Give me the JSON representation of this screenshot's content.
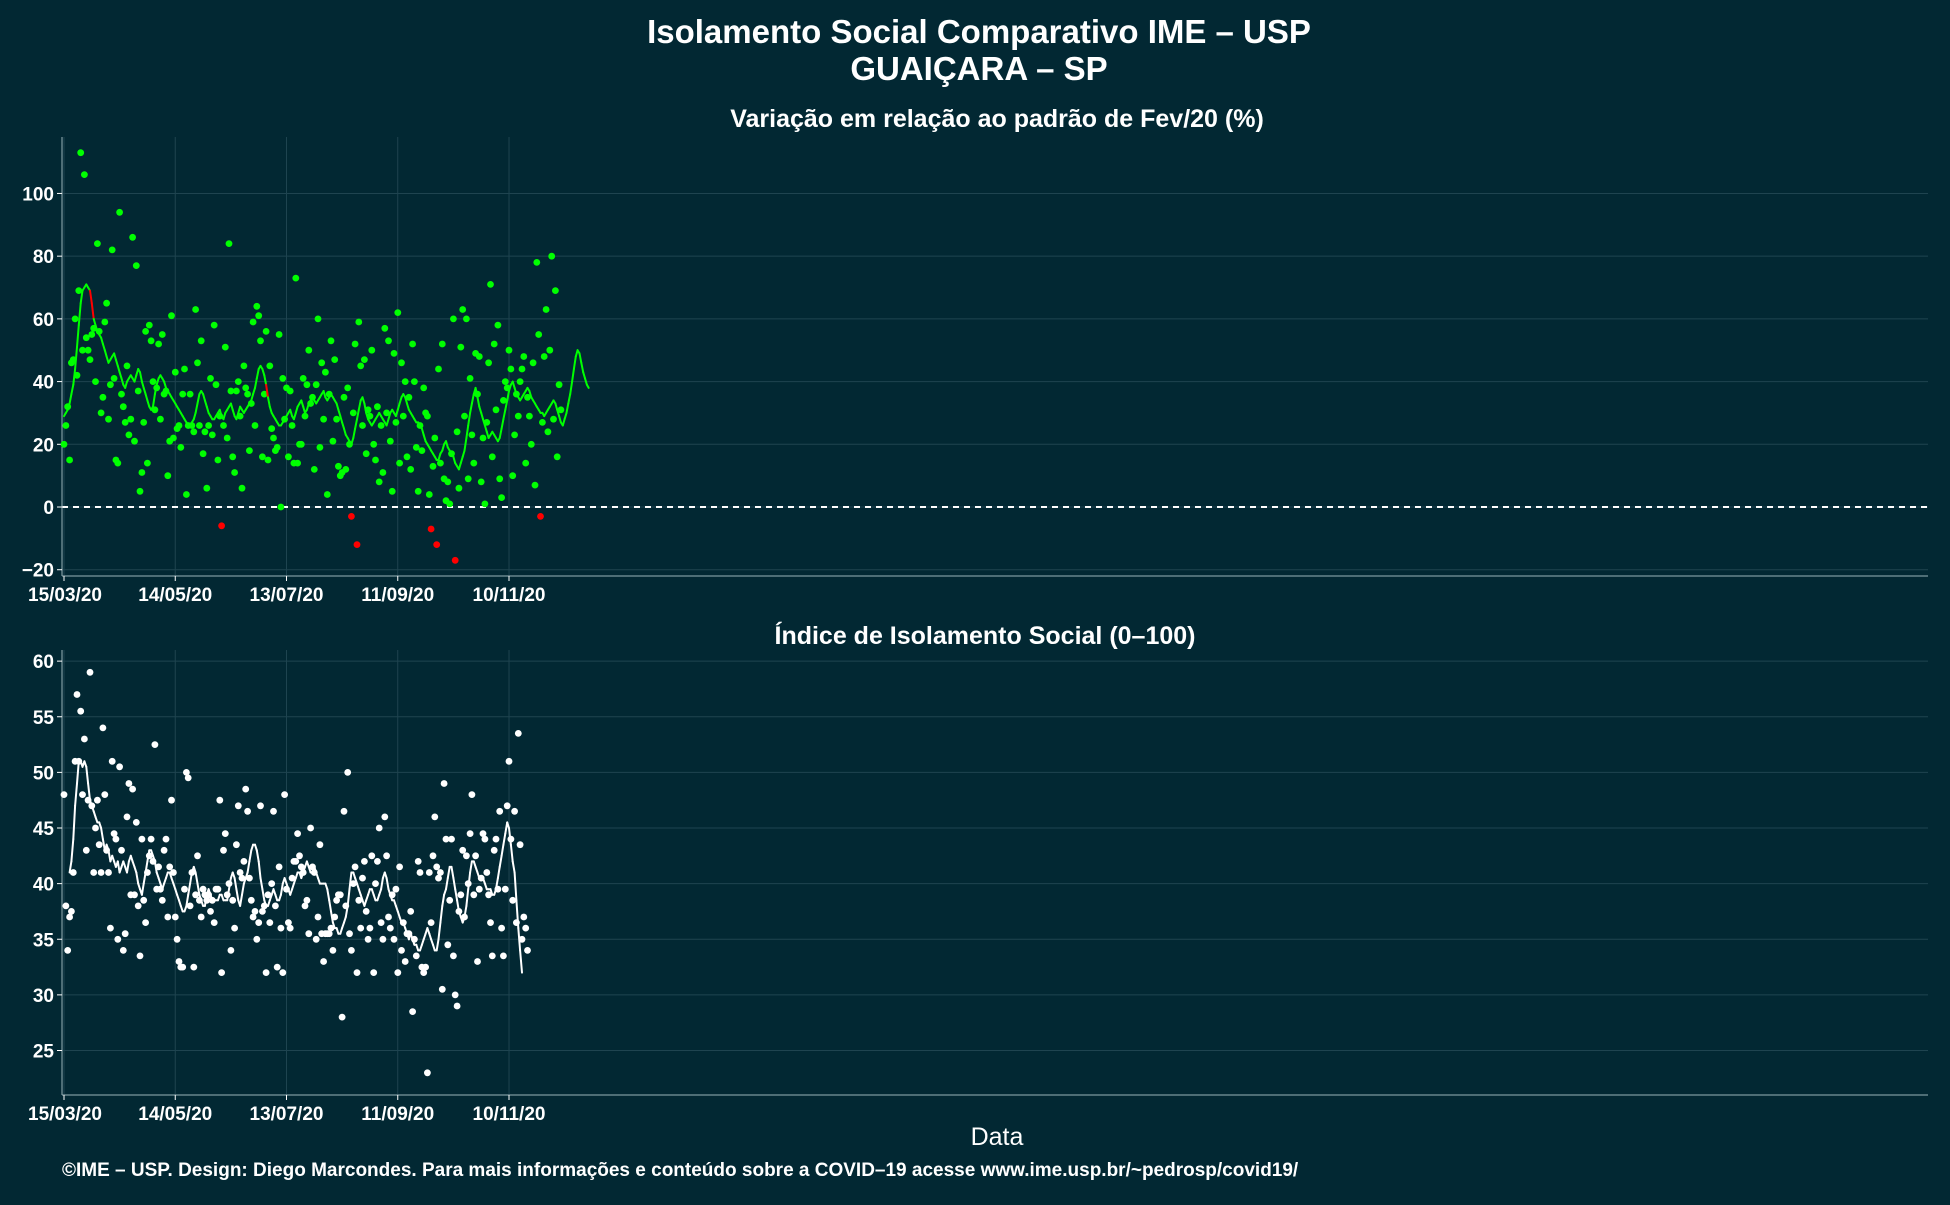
{
  "colors": {
    "background": "#022833",
    "panel": "#022833",
    "grid": "#1f4450",
    "axis_text": "#ffffff",
    "variation_points_positive": "#00ff00",
    "variation_points_negative": "#ff0000",
    "variation_line": "#00ff00",
    "index_points": "#ffffff",
    "index_line": "#ffffff",
    "zero_line": "#ffffff"
  },
  "title_line1": "Isolamento Social Comparativo IME – USP",
  "title_line2": "GUAIÇARA – SP",
  "x_axis_label": "Data",
  "footer": "©IME – USP. Design: Diego Marcondes. Para mais informações e conteúdo sobre a COVID–19 acesse www.ime.usp.br/~pedrosp/covid19/",
  "chart_data": [
    {
      "type": "scatter",
      "title": "Variação em relação ao padrão de Fev/20 (%)",
      "x_start_date": "15/03/20",
      "x_ticks": [
        "15/03/20",
        "14/05/20",
        "13/07/20",
        "11/09/20",
        "10/11/20"
      ],
      "ylim": [
        -22,
        118
      ],
      "y_ticks": [
        -20,
        0,
        20,
        40,
        60,
        80,
        100
      ],
      "y_tick_labels": [
        "−20",
        "0",
        "20",
        "40",
        "60",
        "80",
        "100"
      ],
      "reference_line": 0,
      "grid": true,
      "series": [
        {
          "kind": "points",
          "values": [
            20,
            26,
            32,
            15,
            46,
            47,
            60,
            42,
            69,
            113,
            50,
            106,
            54,
            50,
            47,
            55,
            57,
            40,
            84,
            56,
            30,
            35,
            59,
            65,
            28,
            39,
            82,
            41,
            15,
            14,
            94,
            36,
            32,
            27,
            45,
            23,
            28,
            86,
            21,
            77,
            37,
            5,
            11,
            27,
            56,
            14,
            58,
            53,
            40,
            31,
            38,
            52,
            28,
            55,
            36,
            37,
            10,
            21,
            61,
            22,
            43,
            25,
            26,
            19,
            36,
            44,
            4,
            26,
            36,
            26,
            24,
            63,
            46,
            26,
            53,
            17,
            24,
            6,
            26,
            41,
            23,
            58,
            39,
            15,
            29,
            -6,
            26,
            51,
            22,
            84,
            37,
            16,
            11,
            37,
            40,
            29,
            6,
            45,
            38,
            36,
            18,
            33,
            59,
            26,
            64,
            61,
            53,
            16,
            36,
            56,
            15,
            45,
            25,
            22,
            18,
            19,
            55,
            0,
            41,
            28,
            38,
            16,
            37,
            26,
            14,
            73,
            14,
            20,
            20,
            41,
            29,
            39,
            50,
            33,
            35,
            12,
            39,
            60,
            19,
            46,
            28,
            43,
            4,
            36,
            53,
            21,
            47,
            28,
            13,
            10,
            11,
            35,
            12,
            38,
            20,
            -3,
            30,
            52,
            -12,
            59,
            45,
            26,
            47,
            17,
            31,
            29,
            50,
            20,
            15,
            32,
            8,
            26,
            11,
            57,
            30,
            53,
            21,
            5,
            49,
            27,
            62,
            14,
            46,
            29,
            40,
            16,
            35,
            12,
            52,
            40,
            19,
            5,
            26,
            18,
            38,
            30,
            29,
            4,
            -7,
            13,
            22,
            -12,
            44,
            14,
            52,
            9,
            2,
            8,
            1,
            17,
            60,
            -17,
            24,
            6,
            51,
            63,
            29,
            60,
            9,
            41,
            23,
            14,
            49,
            36,
            48,
            8,
            22,
            1,
            27,
            46,
            71,
            16,
            52,
            31,
            58,
            9,
            3,
            34,
            40,
            38,
            50,
            44,
            10,
            23,
            36,
            29,
            40,
            44,
            48,
            14,
            35,
            29,
            20,
            46,
            7,
            78,
            55,
            -3,
            27,
            48,
            63,
            24,
            50,
            80,
            28,
            69,
            16,
            39,
            31
          ],
          "negative_color": "#ff0000",
          "positive_color": "#00ff00"
        },
        {
          "kind": "line",
          "start_index": 0,
          "values": [
            29,
            30,
            31,
            33,
            36,
            39,
            44,
            51,
            58,
            65,
            69,
            70,
            71,
            70,
            69,
            65,
            60,
            58,
            56,
            55,
            54,
            52,
            50,
            48,
            46,
            47,
            48,
            49,
            47,
            45,
            43,
            41,
            39,
            38,
            40,
            41,
            42,
            41,
            40,
            42,
            44,
            43,
            40,
            38,
            36,
            34,
            32,
            31,
            32,
            36,
            39,
            41,
            42,
            41,
            40,
            38,
            37,
            36,
            35,
            34,
            33,
            32,
            31,
            30,
            29,
            28,
            27,
            26,
            26,
            27,
            28,
            30,
            33,
            36,
            37,
            36,
            34,
            32,
            30,
            29,
            28,
            28,
            29,
            30,
            31,
            29,
            28,
            30,
            31,
            32,
            33,
            31,
            29,
            28,
            30,
            32,
            31,
            30,
            31,
            32,
            33,
            34,
            36,
            38,
            41,
            44,
            45,
            44,
            42,
            39,
            35,
            32,
            30,
            29,
            28,
            27,
            26,
            26,
            27,
            28,
            29,
            30,
            31,
            29,
            28,
            30,
            32,
            33,
            34,
            32,
            30,
            31,
            33,
            34,
            35,
            34,
            33,
            34,
            35,
            36,
            37,
            35,
            34,
            35,
            36,
            35,
            34,
            33,
            31,
            29,
            27,
            25,
            23,
            22,
            21,
            20,
            22,
            25,
            28,
            31,
            34,
            35,
            33,
            30,
            28,
            27,
            26,
            27,
            28,
            29,
            30,
            29,
            28,
            27,
            26,
            28,
            30,
            31,
            30,
            29,
            31,
            33,
            35,
            36,
            35,
            33,
            31,
            30,
            29,
            28,
            27,
            27,
            26,
            25,
            23,
            21,
            20,
            19,
            18,
            17,
            16,
            15,
            15,
            17,
            18,
            20,
            21,
            19,
            18,
            17,
            16,
            14,
            13,
            12,
            14,
            16,
            18,
            22,
            26,
            30,
            33,
            36,
            38,
            35,
            32,
            30,
            28,
            26,
            24,
            22,
            23,
            24,
            23,
            22,
            21,
            22,
            25,
            28,
            31,
            34,
            37,
            39,
            40,
            38,
            36,
            35,
            34,
            35,
            36,
            37,
            38,
            37,
            35,
            34,
            33,
            32,
            31,
            30,
            30,
            29,
            30,
            31,
            32,
            33,
            34,
            33,
            31,
            29,
            27,
            26,
            28,
            30,
            33,
            36,
            40,
            44,
            48,
            50,
            49,
            46,
            43,
            41,
            39,
            38
          ],
          "dip_color": "#ff0000"
        }
      ]
    },
    {
      "type": "scatter",
      "title": "Índice de Isolamento Social (0–100)",
      "x_start_date": "15/03/20",
      "x_ticks": [
        "15/03/20",
        "14/05/20",
        "13/07/20",
        "11/09/20",
        "10/11/20"
      ],
      "ylim": [
        21,
        61
      ],
      "y_ticks": [
        25,
        30,
        35,
        40,
        45,
        50,
        55,
        60
      ],
      "y_tick_labels": [
        "25",
        "30",
        "35",
        "40",
        "45",
        "50",
        "55",
        "60"
      ],
      "grid": true,
      "series": [
        {
          "kind": "points",
          "values": [
            48,
            38,
            34,
            37,
            37.5,
            41,
            51,
            57,
            51,
            55.5,
            48,
            53,
            43,
            47.5,
            59,
            47,
            41,
            45,
            47.5,
            43.5,
            41,
            54,
            48,
            43,
            41,
            36,
            51,
            44.5,
            44,
            35,
            50.5,
            43,
            34,
            35.5,
            46,
            49,
            39,
            48.5,
            39,
            45.5,
            38,
            33.5,
            44,
            38.5,
            36.5,
            41,
            42.5,
            44,
            42,
            52.5,
            39.5,
            41.5,
            39.5,
            38.5,
            43,
            44,
            37,
            41.5,
            47.5,
            41,
            37,
            35,
            33,
            32.5,
            32.5,
            39.5,
            50,
            49.5,
            38,
            41,
            32.5,
            39,
            42.5,
            38.5,
            37,
            39.5,
            39,
            38.5,
            39,
            37.5,
            38.5,
            36.5,
            39.5,
            39.5,
            47.5,
            32,
            43,
            44.5,
            39,
            40,
            34,
            38.5,
            36,
            43.5,
            47,
            41,
            40.5,
            42,
            48.5,
            46.5,
            40.5,
            38.5,
            37,
            37.5,
            35,
            36.5,
            47,
            37.5,
            38,
            32,
            39,
            36.5,
            40,
            46.5,
            38,
            32.5,
            41.5,
            36,
            32,
            48,
            39.5,
            36.5,
            36,
            40.5,
            42,
            42,
            44.5,
            42.5,
            41.5,
            41,
            38,
            38.5,
            35.5,
            45,
            41.5,
            41,
            35,
            37,
            43.5,
            35.5,
            33,
            35.5,
            35.5,
            35.5,
            36,
            34,
            37,
            38.5,
            39,
            39,
            28,
            46.5,
            38,
            50,
            35.5,
            34,
            40,
            41.5,
            32,
            38.5,
            36,
            40.5,
            42,
            37.5,
            35,
            36,
            42.5,
            32,
            40,
            42,
            45,
            36.5,
            35,
            46,
            42.5,
            37,
            36,
            39,
            35,
            39.5,
            32,
            41.5,
            34,
            36.5,
            33,
            35.5,
            35.5,
            37.5,
            28.5,
            35,
            33.5,
            42,
            41,
            32.5,
            32,
            32.5,
            23,
            41,
            36.5,
            42.5,
            46,
            41.5,
            40.5,
            41,
            30.5,
            49,
            44,
            34.5,
            38.5,
            44,
            33.5,
            30,
            29,
            37.5,
            39,
            43,
            37,
            42.5,
            40,
            44.5,
            48,
            39,
            42.5,
            33,
            39.5,
            40.5,
            44.5,
            44,
            41,
            39,
            36.5,
            33.5,
            43,
            44,
            39.5,
            46.5,
            36,
            33.5,
            39.5,
            47,
            51,
            44,
            38.5,
            46.5,
            36.5,
            53.5,
            43.5,
            35,
            37,
            36,
            34
          ],
          "color": "#ffffff"
        },
        {
          "kind": "line",
          "start_index": 3,
          "values": [
            41,
            42,
            44,
            47,
            49,
            51,
            51,
            50.5,
            51,
            50.5,
            49,
            47.5,
            47,
            46.5,
            46,
            45.5,
            45.5,
            45,
            44,
            43,
            43.5,
            43,
            42,
            42.5,
            42,
            41.5,
            42,
            41,
            41.5,
            42,
            41.5,
            41,
            42,
            42.5,
            42,
            41.5,
            41,
            40,
            39.5,
            39,
            40,
            41,
            42,
            43,
            43,
            42.5,
            42,
            41,
            40.5,
            40,
            39.5,
            40,
            40.5,
            41,
            41,
            40.5,
            40,
            39.5,
            39,
            38.5,
            38,
            37.5,
            37.5,
            38,
            39,
            40,
            41,
            41.5,
            41,
            40,
            39,
            38.5,
            38,
            38,
            39,
            39.5,
            39,
            38.5,
            38.5,
            38.5,
            38.5,
            39,
            39,
            38.5,
            38.5,
            38.5,
            39.5,
            40.5,
            41,
            40.5,
            39.5,
            38.5,
            38,
            39,
            40,
            40.5,
            41,
            42,
            43,
            43.5,
            43.5,
            43,
            42,
            40.5,
            39.5,
            38.5,
            38,
            38,
            38.5,
            39,
            39.5,
            39,
            38.5,
            38.5,
            39,
            40,
            40.5,
            40,
            39.5,
            39,
            39.5,
            40,
            40.5,
            41,
            41,
            40.5,
            41,
            41.5,
            42,
            41.5,
            41,
            41,
            41.5,
            41,
            40.5,
            40,
            40,
            40,
            40,
            39.5,
            38.5,
            37.5,
            36.5,
            36,
            36,
            35.5,
            35.5,
            36,
            36.5,
            37,
            38,
            39.5,
            41,
            41,
            40.5,
            40,
            39.5,
            39,
            38.5,
            38,
            38.5,
            39,
            39.5,
            39.5,
            39,
            38.5,
            38.5,
            39,
            39.5,
            40.5,
            41,
            40.5,
            39.5,
            39,
            38.5,
            38.5,
            38,
            37.5,
            37,
            36.5,
            36.5,
            36,
            35.5,
            35,
            35.5,
            35,
            34.5,
            34.5,
            34,
            34,
            34.5,
            35,
            35.5,
            36,
            35.5,
            35,
            34.5,
            34,
            34,
            35,
            36.5,
            38,
            39,
            39.5,
            40.5,
            41.5,
            41.5,
            40.5,
            39.5,
            38.5,
            37.5,
            37,
            36.5,
            37,
            38,
            39.5,
            41,
            42,
            42,
            41.5,
            41,
            40.5,
            40.5,
            40.5,
            40,
            39.5,
            39.5,
            39.5,
            39,
            39,
            39.5,
            40.5,
            41.5,
            42.5,
            43.5,
            44.5,
            45.5,
            45,
            43.5,
            42,
            41,
            38.5,
            36,
            34,
            32
          ]
        }
      ]
    }
  ]
}
